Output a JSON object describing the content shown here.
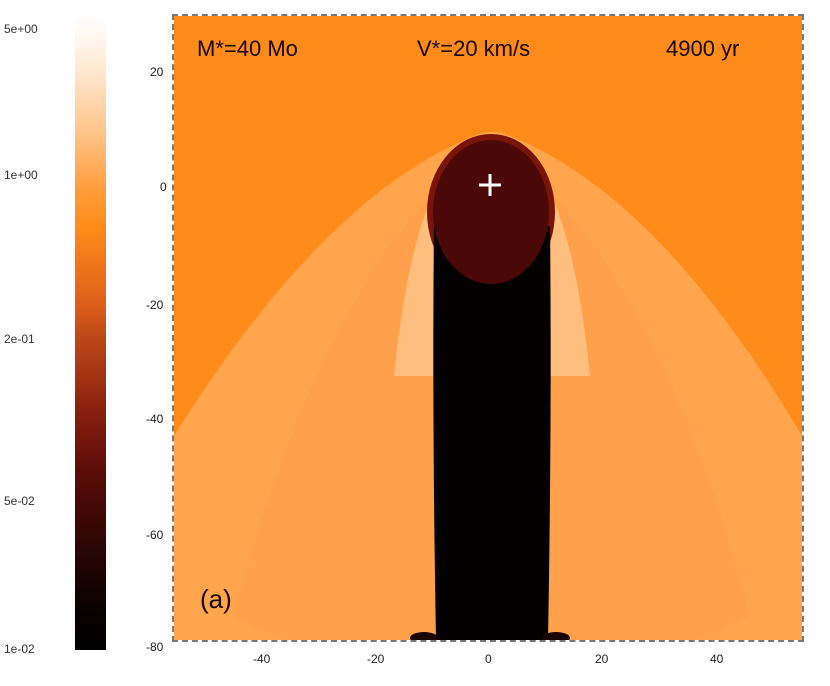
{
  "colorbar": {
    "labels": [
      "5e+00",
      "1e+00",
      "2e-01",
      "5e-02",
      "1e-02"
    ]
  },
  "plot": {
    "header": {
      "mass": "M*=40 Mo",
      "velocity": "V*=20 km/s",
      "time": "4900 yr"
    },
    "panel_label": "(a)",
    "y_ticks": [
      "20",
      "0",
      "-20",
      "-40",
      "-60",
      "-80"
    ],
    "x_ticks": [
      "-40",
      "-20",
      "0",
      "20",
      "40"
    ],
    "colors": {
      "ambient": "#ff8c1a",
      "shell_light": "#ffd7a8",
      "bubble": "#4a0806",
      "wake": "#050000",
      "star_marker": "#ffffff"
    }
  }
}
